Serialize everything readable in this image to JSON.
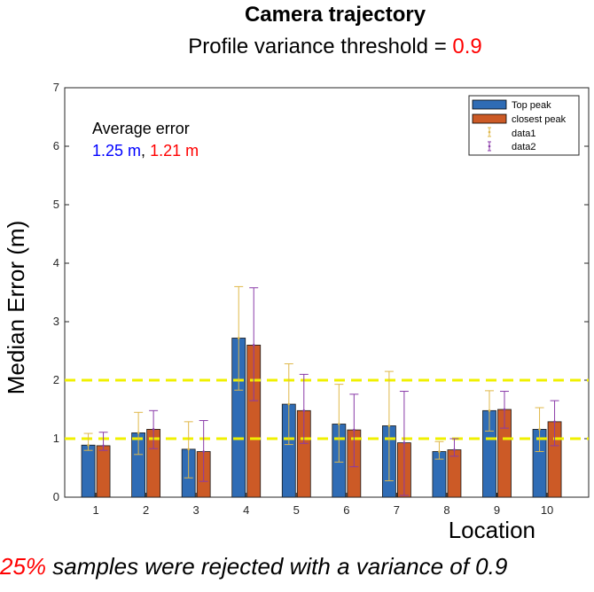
{
  "chart_data": {
    "type": "bar",
    "title": "Camera trajectory",
    "subtitle_prefix": "Profile variance threshold = ",
    "subtitle_value": "0.9",
    "xlabel": "Location",
    "ylabel": "Median Error (m)",
    "categories": [
      "1",
      "2",
      "3",
      "4",
      "5",
      "6",
      "7",
      "8",
      "9",
      "10"
    ],
    "ylim": [
      0,
      7
    ],
    "yticks": [
      "0",
      "1",
      "2",
      "3",
      "4",
      "5",
      "6",
      "7"
    ],
    "series": [
      {
        "name": "Top peak",
        "color": "#2f6cb5",
        "values": [
          0.89,
          1.1,
          0.82,
          2.72,
          1.59,
          1.25,
          1.22,
          0.78,
          1.48,
          1.16
        ],
        "err_low": [
          0.8,
          0.73,
          0.33,
          1.83,
          0.9,
          0.6,
          0.28,
          0.65,
          1.13,
          0.78
        ],
        "err_high": [
          1.09,
          1.45,
          1.29,
          3.6,
          2.28,
          1.93,
          2.15,
          0.95,
          1.82,
          1.53
        ]
      },
      {
        "name": "closest peak",
        "color": "#cc5a26",
        "values": [
          0.88,
          1.16,
          0.78,
          2.6,
          1.48,
          1.15,
          0.93,
          0.81,
          1.5,
          1.29
        ],
        "err_low": [
          0.8,
          0.83,
          0.27,
          1.65,
          0.92,
          0.52,
          0.03,
          0.7,
          1.18,
          0.88
        ],
        "err_high": [
          1.11,
          1.48,
          1.31,
          3.58,
          2.1,
          1.76,
          1.81,
          1.0,
          1.81,
          1.65
        ]
      }
    ],
    "errorbar_series": [
      {
        "name": "data1",
        "color": "#e0b84a"
      },
      {
        "name": "data2",
        "color": "#8a3aa8"
      }
    ],
    "reference_lines": [
      {
        "y": 1,
        "color": "#f0f000",
        "style": "dashed"
      },
      {
        "y": 2,
        "color": "#f0f000",
        "style": "dashed"
      }
    ],
    "legend_placement": "top-right",
    "grid": false,
    "annotation": {
      "label": "Average error",
      "value1": "1.25 m",
      "value1_color": "#0000ff",
      "separator": ",",
      "value2": "1.21 m",
      "value2_color": "#ff0000"
    }
  },
  "footer": {
    "percent": "25%",
    "text": " samples were rejected with a variance of 0.9"
  }
}
